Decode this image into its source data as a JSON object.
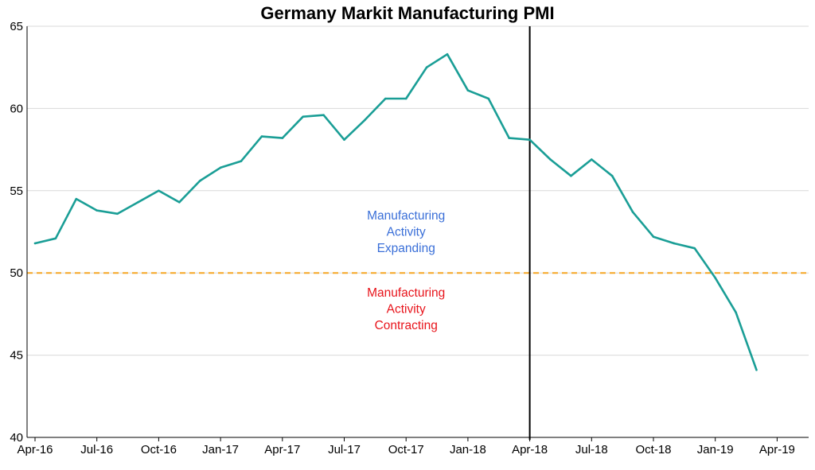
{
  "chart_data": {
    "type": "line",
    "title": "Germany Markit Manufacturing PMI",
    "xlabel": "",
    "ylabel": "",
    "ylim": [
      40,
      65
    ],
    "yticks": [
      40,
      45,
      50,
      55,
      60,
      65
    ],
    "grid": true,
    "x": [
      "2016-04",
      "2016-05",
      "2016-06",
      "2016-07",
      "2016-08",
      "2016-09",
      "2016-10",
      "2016-11",
      "2016-12",
      "2017-01",
      "2017-02",
      "2017-03",
      "2017-04",
      "2017-05",
      "2017-06",
      "2017-07",
      "2017-08",
      "2017-09",
      "2017-10",
      "2017-11",
      "2017-12",
      "2018-01",
      "2018-02",
      "2018-03",
      "2018-04",
      "2018-05",
      "2018-06",
      "2018-07",
      "2018-08",
      "2018-09",
      "2018-10",
      "2018-11",
      "2018-12",
      "2019-01",
      "2019-02",
      "2019-03"
    ],
    "xtick_labels": [
      {
        "date": "2016-04",
        "label": "Apr-16"
      },
      {
        "date": "2016-07",
        "label": "Jul-16"
      },
      {
        "date": "2016-10",
        "label": "Oct-16"
      },
      {
        "date": "2017-01",
        "label": "Jan-17"
      },
      {
        "date": "2017-04",
        "label": "Apr-17"
      },
      {
        "date": "2017-07",
        "label": "Jul-17"
      },
      {
        "date": "2017-10",
        "label": "Oct-17"
      },
      {
        "date": "2018-01",
        "label": "Jan-18"
      },
      {
        "date": "2018-04",
        "label": "Apr-18"
      },
      {
        "date": "2018-07",
        "label": "Jul-18"
      },
      {
        "date": "2018-10",
        "label": "Oct-18"
      },
      {
        "date": "2019-01",
        "label": "Jan-19"
      },
      {
        "date": "2019-04",
        "label": "Apr-19"
      }
    ],
    "series": [
      {
        "color": "#1a9e96",
        "values": [
          51.8,
          52.1,
          54.5,
          53.8,
          53.6,
          54.3,
          55.0,
          54.3,
          55.6,
          56.4,
          56.8,
          58.3,
          58.2,
          59.5,
          59.6,
          58.1,
          59.3,
          60.6,
          60.6,
          62.5,
          63.3,
          61.1,
          60.6,
          58.2,
          58.1,
          56.9,
          55.9,
          56.9,
          55.9,
          53.7,
          52.2,
          51.8,
          51.5,
          49.7,
          47.6,
          44.1
        ]
      }
    ],
    "reference_line": {
      "value": 50,
      "color": "#f5a623",
      "style": "dashed"
    },
    "vertical_marker": {
      "date": "2018-04",
      "color": "#000000"
    },
    "annotations": [
      {
        "lines": [
          "Manufacturing",
          "Activity",
          "Expanding"
        ],
        "color": "#3a6fd8",
        "x": "2017-10",
        "y": 52.5
      },
      {
        "lines": [
          "Manufacturing",
          "Activity",
          "Contracting"
        ],
        "color": "#e8141b",
        "x": "2017-10",
        "y": 47.8
      }
    ]
  }
}
